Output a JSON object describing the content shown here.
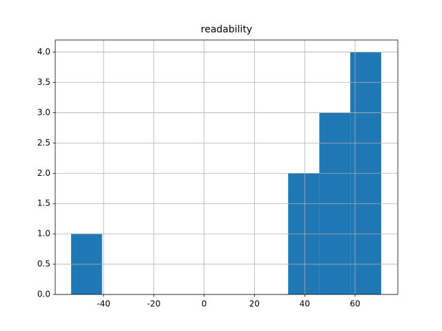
{
  "chart_data": {
    "type": "histogram",
    "title": "readability",
    "bins": [
      -52.9,
      -40.6,
      -28.2,
      -15.9,
      -3.6,
      8.8,
      21.1,
      33.4,
      45.8,
      58.1,
      70.4
    ],
    "counts": [
      1,
      0,
      0,
      0,
      0,
      0,
      0,
      2,
      3,
      4
    ],
    "color": "#1f77b4",
    "xlim": [
      -59.2,
      77.0
    ],
    "xticks": [
      -40,
      -20,
      0,
      20,
      40,
      60
    ],
    "ylim": [
      0,
      4.2
    ],
    "yticks": [
      {
        "value": 0,
        "label": "0.0"
      },
      0.5,
      {
        "value": 1,
        "label": "1.0"
      },
      1.5,
      {
        "value": 2,
        "label": "2.0"
      },
      2.5,
      {
        "value": 3,
        "label": "3.0"
      },
      3.5,
      {
        "value": 4,
        "label": "4.0"
      }
    ],
    "grid": true
  }
}
